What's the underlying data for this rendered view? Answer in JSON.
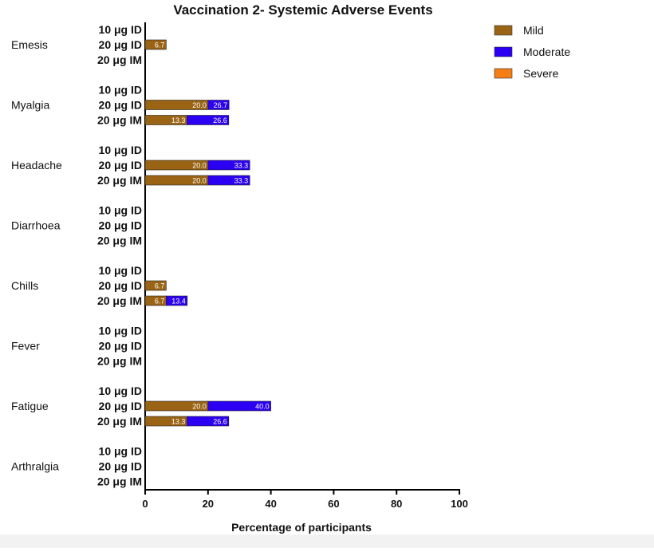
{
  "chart_data": {
    "type": "bar",
    "orientation": "horizontal",
    "stacked": true,
    "title": "Vaccination 2- Systemic Adverse Events",
    "xlabel": "Percentage of participants",
    "ylabel": "",
    "xlim": [
      0,
      100
    ],
    "xticks": [
      "0",
      "20",
      "40",
      "60",
      "80",
      "100"
    ],
    "grid": false,
    "legend_position": "top-right",
    "series": [
      {
        "name": "Mild",
        "color": "#9a6414"
      },
      {
        "name": "Moderate",
        "color": "#2b00f2"
      },
      {
        "name": "Severe",
        "color": "#f47d14"
      }
    ],
    "groups": [
      {
        "name": "Emesis",
        "rows": [
          {
            "label": "10 μg ID",
            "values": [
              0,
              0,
              0
            ],
            "labels": [
              "",
              "",
              ""
            ]
          },
          {
            "label": "20 μg ID",
            "values": [
              6.7,
              0,
              0
            ],
            "labels": [
              "6.7",
              "",
              ""
            ]
          },
          {
            "label": "20 μg IM",
            "values": [
              0,
              0,
              0
            ],
            "labels": [
              "",
              "",
              ""
            ]
          }
        ]
      },
      {
        "name": "Myalgia",
        "rows": [
          {
            "label": "10 μg ID",
            "values": [
              0,
              0,
              0
            ],
            "labels": [
              "",
              "",
              ""
            ]
          },
          {
            "label": "20 μg ID",
            "values": [
              20.0,
              6.7,
              0
            ],
            "labels": [
              "20.0",
              "26.7",
              ""
            ]
          },
          {
            "label": "20 μg IM",
            "values": [
              13.3,
              13.3,
              0
            ],
            "labels": [
              "13.3",
              "26.6",
              ""
            ]
          }
        ]
      },
      {
        "name": "Headache",
        "rows": [
          {
            "label": "10 μg ID",
            "values": [
              0,
              0,
              0
            ],
            "labels": [
              "",
              "",
              ""
            ]
          },
          {
            "label": "20 μg ID",
            "values": [
              20.0,
              13.3,
              0
            ],
            "labels": [
              "20.0",
              "33.3",
              ""
            ]
          },
          {
            "label": "20 μg IM",
            "values": [
              20.0,
              13.3,
              0
            ],
            "labels": [
              "20.0",
              "33.3",
              ""
            ]
          }
        ]
      },
      {
        "name": "Diarrhoea",
        "rows": [
          {
            "label": "10 μg ID",
            "values": [
              0,
              0,
              0
            ],
            "labels": [
              "",
              "",
              ""
            ]
          },
          {
            "label": "20 μg ID",
            "values": [
              0,
              0,
              0
            ],
            "labels": [
              "",
              "",
              ""
            ]
          },
          {
            "label": "20 μg IM",
            "values": [
              0,
              0,
              0
            ],
            "labels": [
              "",
              "",
              ""
            ]
          }
        ]
      },
      {
        "name": "Chills",
        "rows": [
          {
            "label": "10 μg ID",
            "values": [
              0,
              0,
              0
            ],
            "labels": [
              "",
              "",
              ""
            ]
          },
          {
            "label": "20 μg ID",
            "values": [
              6.7,
              0,
              0
            ],
            "labels": [
              "6.7",
              "",
              ""
            ]
          },
          {
            "label": "20 μg IM",
            "values": [
              6.7,
              6.7,
              0
            ],
            "labels": [
              "6.7",
              "13.4",
              ""
            ]
          }
        ]
      },
      {
        "name": "Fever",
        "rows": [
          {
            "label": "10 μg ID",
            "values": [
              0,
              0,
              0
            ],
            "labels": [
              "",
              "",
              ""
            ]
          },
          {
            "label": "20 μg ID",
            "values": [
              0,
              0,
              0
            ],
            "labels": [
              "",
              "",
              ""
            ]
          },
          {
            "label": "20 μg IM",
            "values": [
              0,
              0,
              0
            ],
            "labels": [
              "",
              "",
              ""
            ]
          }
        ]
      },
      {
        "name": "Fatigue",
        "rows": [
          {
            "label": "10 μg ID",
            "values": [
              0,
              0,
              0
            ],
            "labels": [
              "",
              "",
              ""
            ]
          },
          {
            "label": "20 μg ID",
            "values": [
              20.0,
              20.0,
              0
            ],
            "labels": [
              "20.0",
              "40.0",
              ""
            ]
          },
          {
            "label": "20 μg IM",
            "values": [
              13.3,
              13.3,
              0
            ],
            "labels": [
              "13.3",
              "26.6",
              ""
            ]
          }
        ]
      },
      {
        "name": "Arthralgia",
        "rows": [
          {
            "label": "10 μg ID",
            "values": [
              0,
              0,
              0
            ],
            "labels": [
              "",
              "",
              ""
            ]
          },
          {
            "label": "20 μg ID",
            "values": [
              0,
              0,
              0
            ],
            "labels": [
              "",
              "",
              ""
            ]
          },
          {
            "label": "20 μg IM",
            "values": [
              0,
              0,
              0
            ],
            "labels": [
              "",
              "",
              ""
            ]
          }
        ]
      }
    ]
  }
}
